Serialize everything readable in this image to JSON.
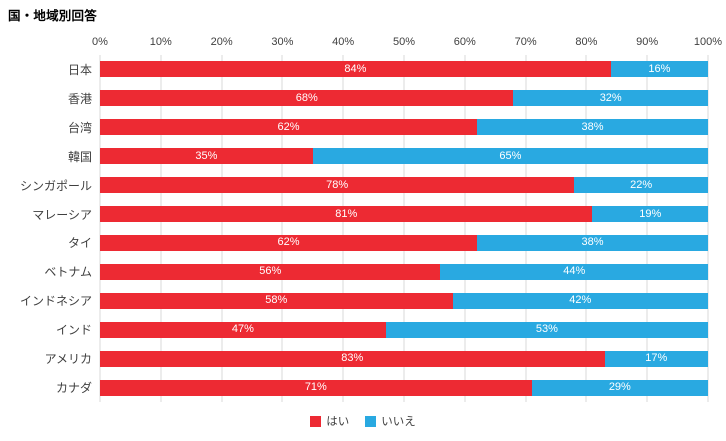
{
  "title": "国・地域別回答",
  "colors": {
    "yes": "#ED2A33",
    "no": "#29A9E1",
    "gridline": "#D9D9D9",
    "axis_text": "#404040",
    "value_label_text": "#FFFFFF"
  },
  "legend": {
    "position": "bottom",
    "items": [
      {
        "key": "yes",
        "label": "はい",
        "color": "#ED2A33"
      },
      {
        "key": "no",
        "label": "いいえ",
        "color": "#29A9E1"
      }
    ]
  },
  "chart_data": {
    "type": "bar",
    "orientation": "horizontal",
    "stacked": true,
    "title": "国・地域別回答",
    "xlim": [
      0,
      100
    ],
    "x_ticks": [
      "0%",
      "10%",
      "20%",
      "30%",
      "40%",
      "50%",
      "60%",
      "70%",
      "80%",
      "90%",
      "100%"
    ],
    "grid": "vertical",
    "legend_position": "bottom",
    "value_label_format": "{v}%",
    "categories": [
      "日本",
      "香港",
      "台湾",
      "韓国",
      "シンガポール",
      "マレーシア",
      "タイ",
      "ベトナム",
      "インドネシア",
      "インド",
      "アメリカ",
      "カナダ"
    ],
    "series": [
      {
        "name": "はい",
        "color": "#ED2A33",
        "values": [
          84,
          68,
          62,
          35,
          78,
          81,
          62,
          56,
          58,
          47,
          83,
          71
        ]
      },
      {
        "name": "いいえ",
        "color": "#29A9E1",
        "values": [
          16,
          32,
          38,
          65,
          22,
          19,
          38,
          44,
          42,
          53,
          17,
          29
        ]
      }
    ]
  }
}
